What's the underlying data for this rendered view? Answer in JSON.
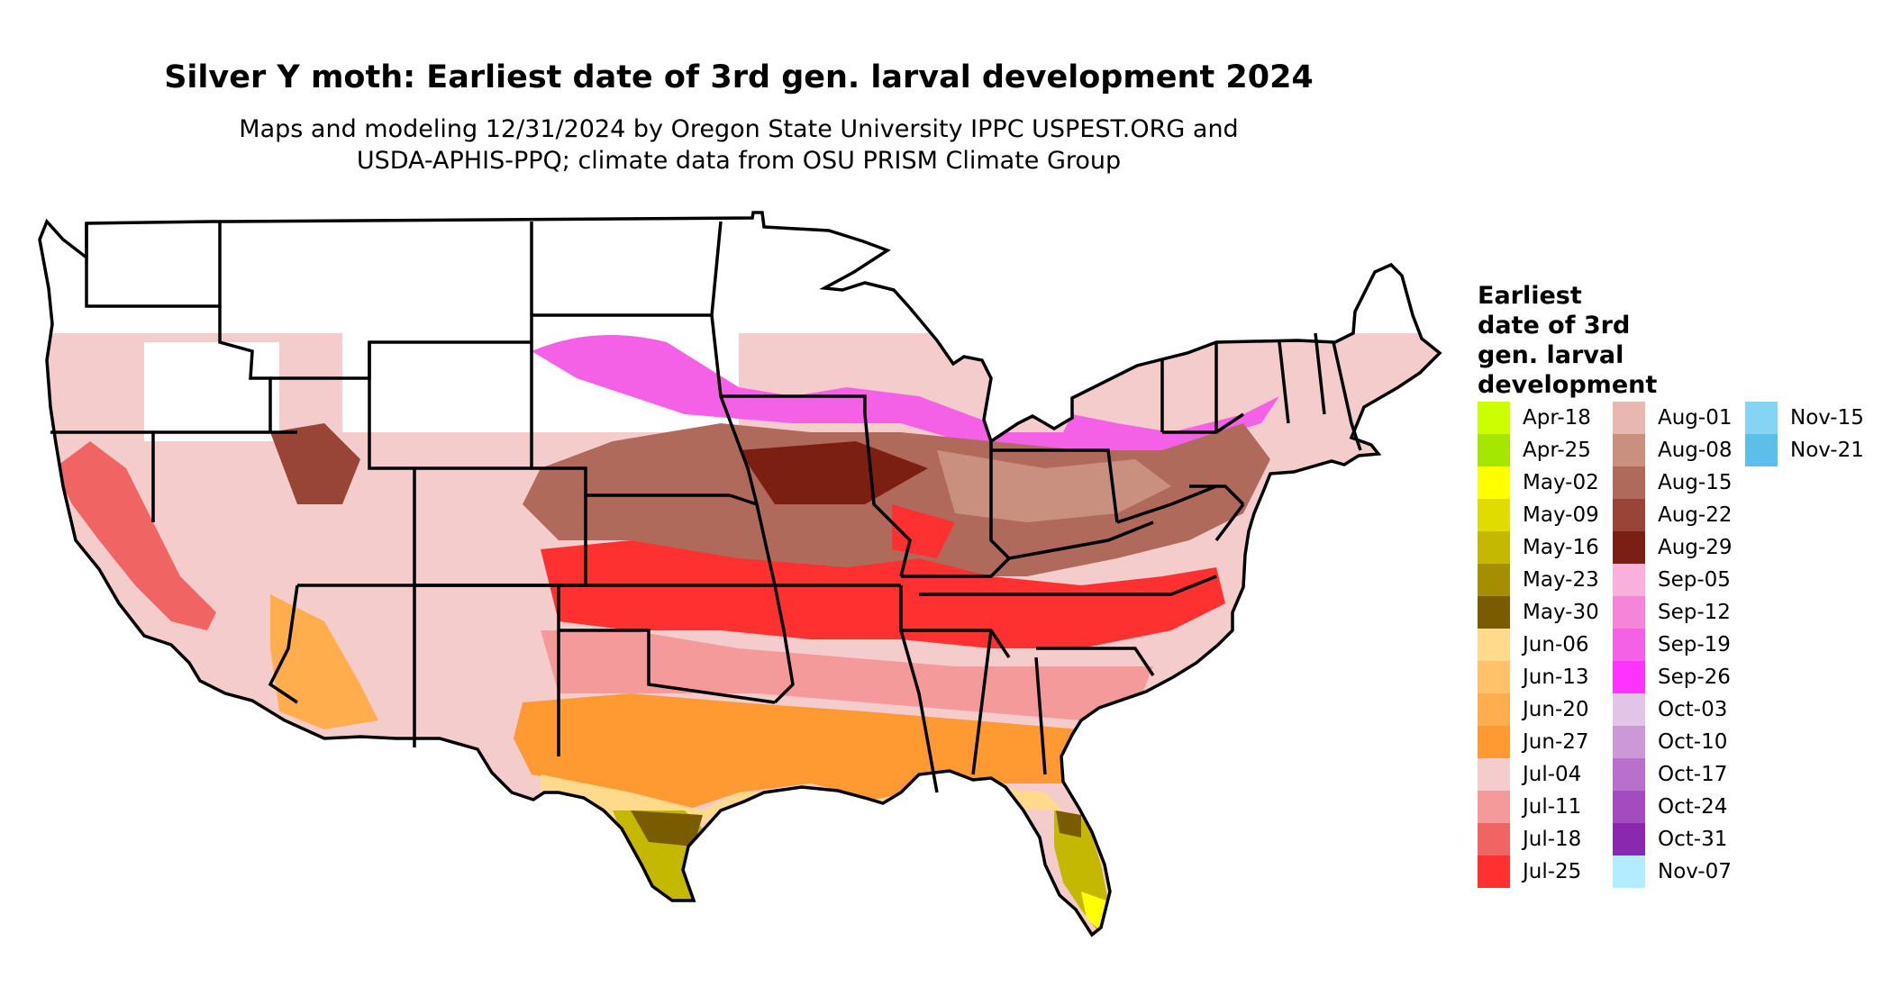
{
  "title": "Silver Y moth: Earliest date of 3rd gen. larval development 2024",
  "subtitle_line1": "Maps and modeling 12/31/2024 by Oregon State University IPPC USPEST.ORG and",
  "subtitle_line2": "USDA-APHIS-PPQ; climate data from OSU PRISM Climate Group",
  "legend": {
    "title_lines": [
      "Earliest",
      "date of 3rd",
      "gen. larval",
      "development"
    ],
    "columns": [
      [
        {
          "label": "Apr-18",
          "color": "#ccff00"
        },
        {
          "label": "Apr-25",
          "color": "#a6e600"
        },
        {
          "label": "May-02",
          "color": "#ffff00"
        },
        {
          "label": "May-09",
          "color": "#e0dc00"
        },
        {
          "label": "May-16",
          "color": "#c4b800"
        },
        {
          "label": "May-23",
          "color": "#a38f00"
        },
        {
          "label": "May-30",
          "color": "#7a5c00"
        },
        {
          "label": "Jun-06",
          "color": "#ffd98c"
        },
        {
          "label": "Jun-13",
          "color": "#ffc26b"
        },
        {
          "label": "Jun-20",
          "color": "#ffad4d"
        },
        {
          "label": "Jun-27",
          "color": "#ff9a33"
        },
        {
          "label": "Jul-04",
          "color": "#f5cccc"
        },
        {
          "label": "Jul-11",
          "color": "#f59a9a"
        },
        {
          "label": "Jul-18",
          "color": "#f06464"
        },
        {
          "label": "Jul-25",
          "color": "#ff3030"
        }
      ],
      [
        {
          "label": "Aug-01",
          "color": "#e8b8b0"
        },
        {
          "label": "Aug-08",
          "color": "#c99080"
        },
        {
          "label": "Aug-15",
          "color": "#b06a5c"
        },
        {
          "label": "Aug-22",
          "color": "#984436"
        },
        {
          "label": "Aug-29",
          "color": "#7a1f12"
        },
        {
          "label": "Sep-05",
          "color": "#f9b0dd"
        },
        {
          "label": "Sep-12",
          "color": "#f585d8"
        },
        {
          "label": "Sep-19",
          "color": "#f561e6"
        },
        {
          "label": "Sep-26",
          "color": "#ff33ff"
        },
        {
          "label": "Oct-03",
          "color": "#e2c4e8"
        },
        {
          "label": "Oct-10",
          "color": "#cc99d6"
        },
        {
          "label": "Oct-17",
          "color": "#b870cc"
        },
        {
          "label": "Oct-24",
          "color": "#a34cbf"
        },
        {
          "label": "Oct-31",
          "color": "#8a29b0"
        },
        {
          "label": "Nov-07",
          "color": "#b3ebff"
        }
      ],
      [
        {
          "label": "Nov-15",
          "color": "#85d4f5"
        },
        {
          "label": "Nov-21",
          "color": "#5cbfe8"
        }
      ]
    ]
  }
}
